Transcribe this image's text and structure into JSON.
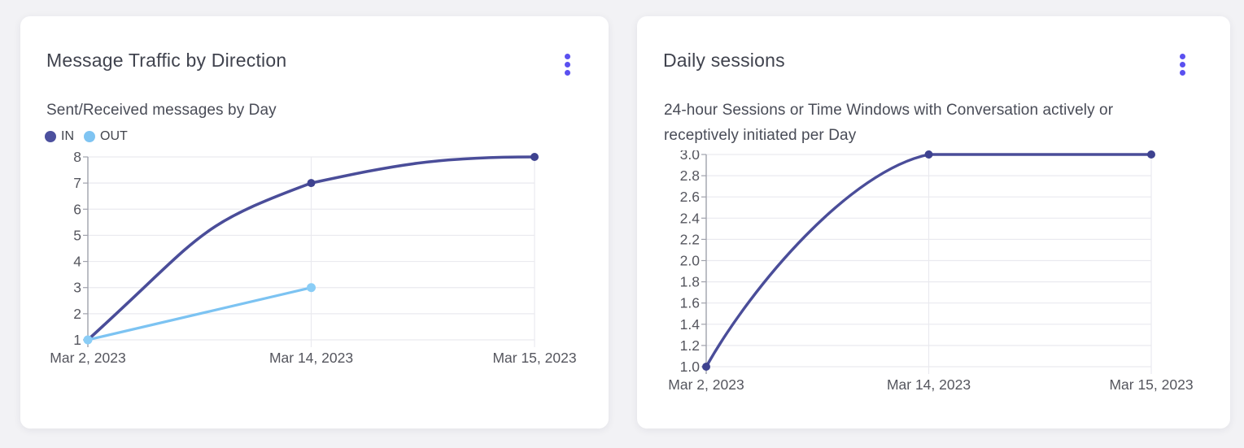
{
  "page_background": "#f2f2f5",
  "cards": [
    {
      "title": "Message Traffic by Direction",
      "subtitle": "Sent/Received messages by Day",
      "menu_icon": "kebab-menu-icon",
      "legend": [
        {
          "label": "IN",
          "color": "#4c509e"
        },
        {
          "label": "OUT",
          "color": "#7fc4f2"
        }
      ]
    },
    {
      "title": "Daily sessions",
      "subtitle": "24-hour Sessions or Time Windows with Conversation actively or receptively initiated per Day",
      "menu_icon": "kebab-menu-icon"
    }
  ],
  "chart_data": [
    {
      "type": "line",
      "title": "Message Traffic by Direction",
      "subtitle": "Sent/Received messages by Day",
      "categories": [
        "Mar 2, 2023",
        "Mar 14, 2023",
        "Mar 15, 2023"
      ],
      "series": [
        {
          "name": "IN",
          "color": "#4a4d99",
          "point_color": "#3e4290",
          "values": [
            1,
            7,
            8
          ]
        },
        {
          "name": "OUT",
          "color": "#7cc3f2",
          "point_color": "#8acdf6",
          "values": [
            1,
            3,
            null
          ]
        }
      ],
      "ylim": [
        1,
        8
      ],
      "ytick_step": 1,
      "ytick_decimals": 0,
      "grid": true,
      "legend_position": "top-left"
    },
    {
      "type": "line",
      "title": "Daily sessions",
      "categories": [
        "Mar 2, 2023",
        "Mar 14, 2023",
        "Mar 15, 2023"
      ],
      "series": [
        {
          "name": "Daily sessions",
          "color": "#4a4d99",
          "point_color": "#3e4290",
          "values": [
            1.0,
            3.0,
            3.0
          ]
        }
      ],
      "ylim": [
        1.0,
        3.0
      ],
      "ytick_step": 0.2,
      "ytick_decimals": 1,
      "grid": true,
      "legend_position": "none"
    }
  ],
  "colors": {
    "menu_icon": "#5a50f0",
    "grid_line": "#eaeaef",
    "axis_line": "#a0a2ac",
    "tick_label": "#55565e"
  }
}
